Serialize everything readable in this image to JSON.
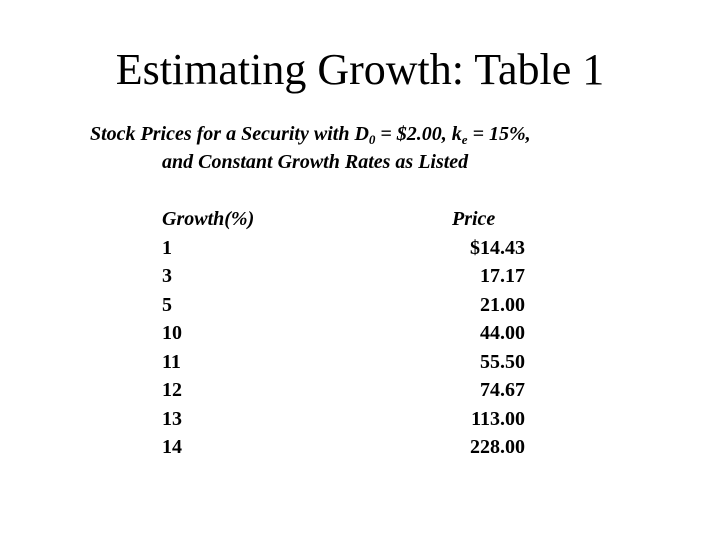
{
  "slide": {
    "title": "Estimating Growth: Table 1",
    "subtitle": {
      "line1_prefix": "Stock Prices for a Security with D",
      "d_subscript": "0",
      "line1_middle": " = $2.00, k",
      "k_subscript": "e",
      "line1_suffix": " = 15%,",
      "line2": "and Constant Growth Rates as Listed"
    }
  },
  "table": {
    "headers": {
      "growth": "Growth(%)",
      "price": "Price"
    },
    "rows": [
      {
        "growth": "1",
        "price": "$14.43"
      },
      {
        "growth": "3",
        "price": "17.17"
      },
      {
        "growth": "5",
        "price": "21.00"
      },
      {
        "growth": "10",
        "price": "44.00"
      },
      {
        "growth": "11",
        "price": "55.50"
      },
      {
        "growth": "12",
        "price": "74.67"
      },
      {
        "growth": "13",
        "price": "113.00"
      },
      {
        "growth": "14",
        "price": "228.00"
      }
    ]
  }
}
